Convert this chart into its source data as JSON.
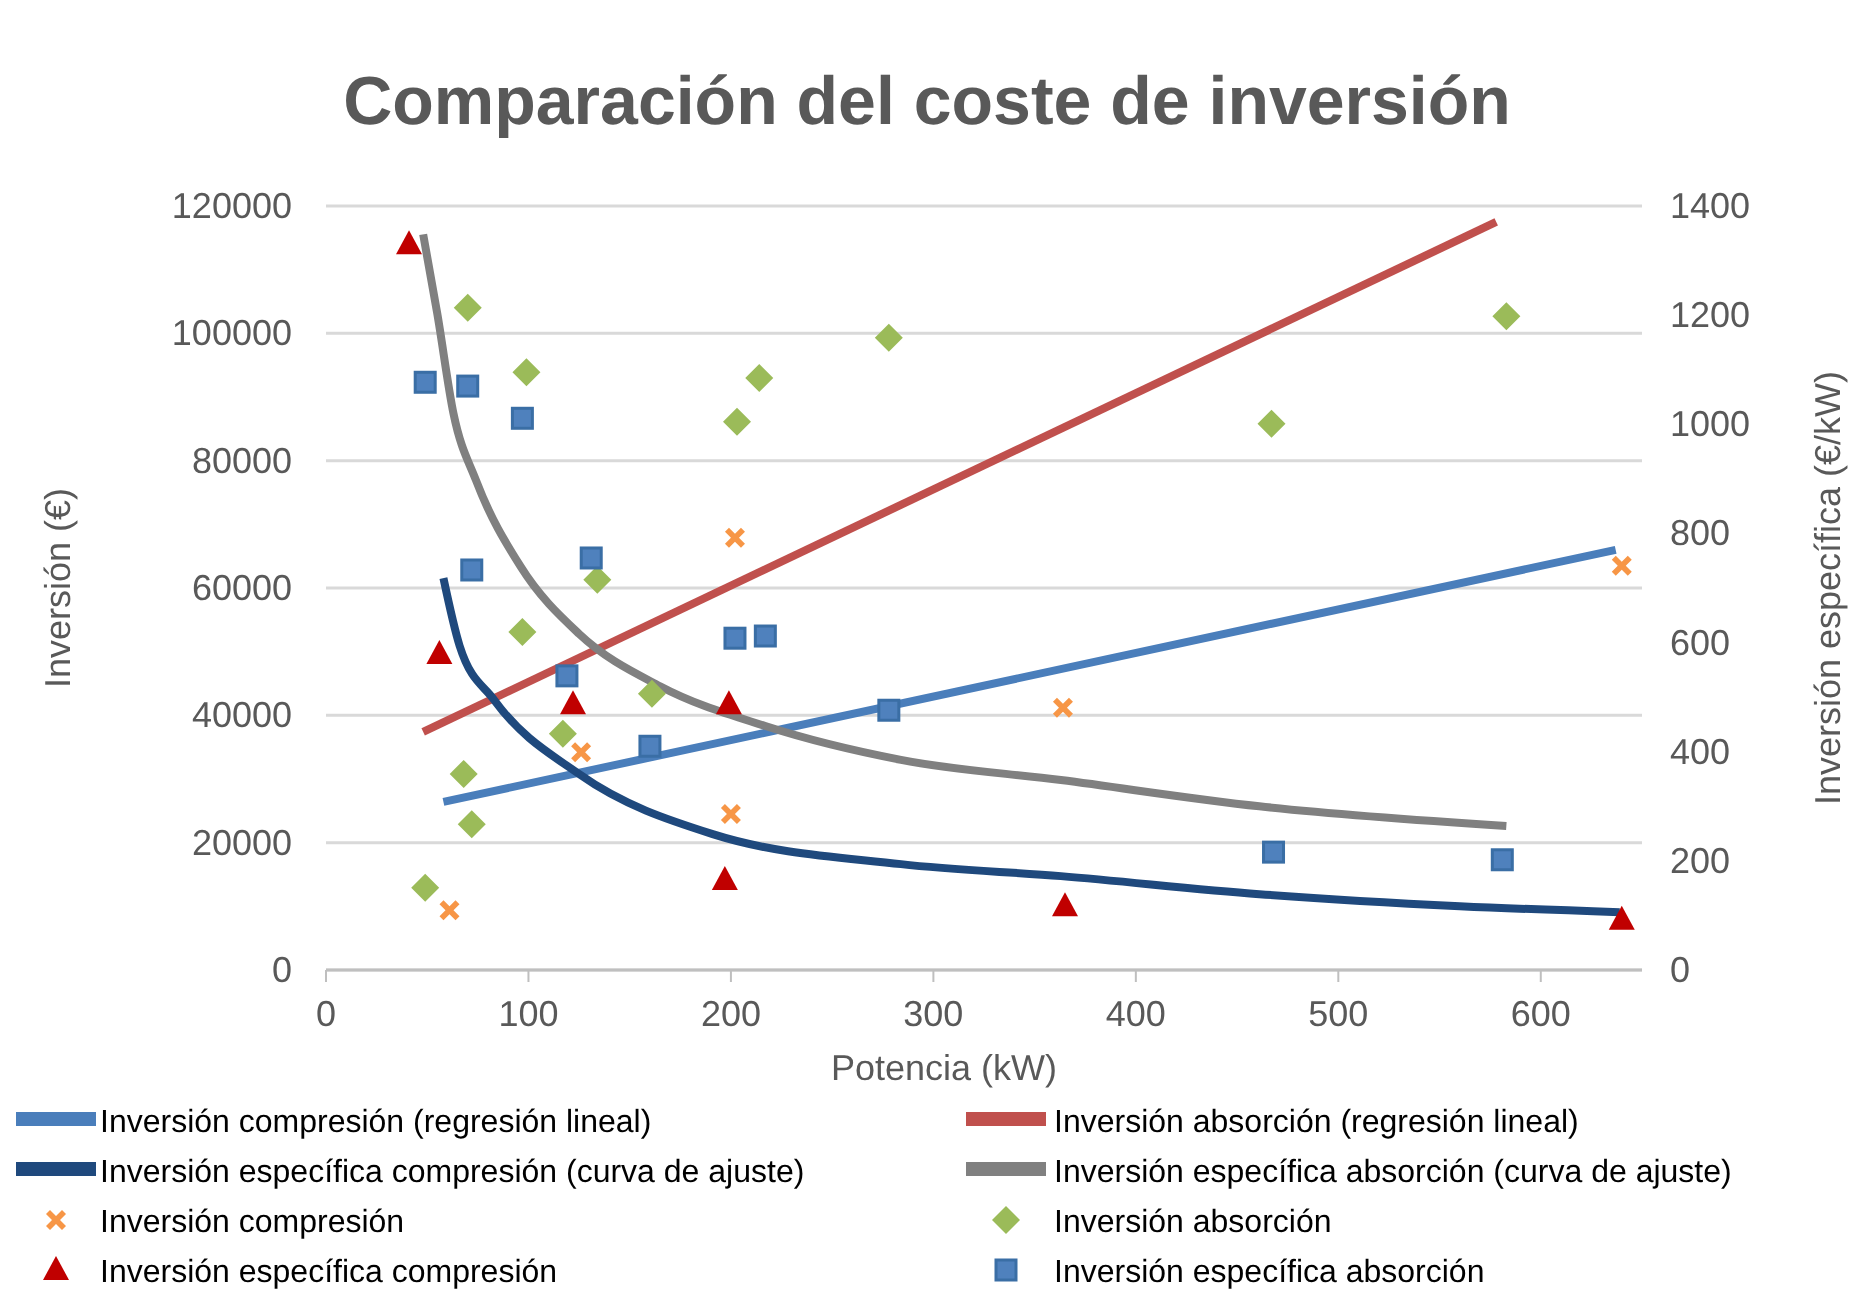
{
  "chart_data": {
    "type": "scatter",
    "title": "Comparación del coste de inversión",
    "xlabel": "Potencia (kW)",
    "ylabel": "Inversión (€)",
    "y2label": "Inversión específica (€/kW)",
    "xlim": [
      0,
      650
    ],
    "xticks": [
      0,
      100,
      200,
      300,
      400,
      500,
      600
    ],
    "ylim": [
      0,
      120000
    ],
    "yticks": [
      0,
      20000,
      40000,
      60000,
      80000,
      100000,
      120000
    ],
    "y2lim": [
      0,
      1400
    ],
    "y2ticks": [
      0,
      200,
      400,
      600,
      800,
      1000,
      1200,
      1400
    ],
    "grid": "y",
    "legend": "bottom",
    "series": [
      {
        "name": "Inversión compresión (regresión lineal)",
        "type": "line",
        "color": "#4a7ebb",
        "x": [
          58,
          637
        ],
        "values": [
          26400,
          66000
        ]
      },
      {
        "name": "Inversión absorción (regresión lineal)",
        "type": "line",
        "color": "#c0504d",
        "x": [
          48,
          578
        ],
        "values": [
          37400,
          117500
        ]
      },
      {
        "name": "Inversión específica compresión (curva de ajuste)",
        "type": "line",
        "axis": "y2",
        "color": "#1f497d",
        "x": [
          58,
          66,
          83,
          125,
          191,
          284,
          363,
          461,
          560,
          639
        ],
        "values": [
          718,
          594,
          495,
          359,
          249,
          194,
          172,
          139,
          117,
          106
        ]
      },
      {
        "name": "Inversión específica absorción (curva de ajuste)",
        "type": "line",
        "axis": "y2",
        "color": "#808080",
        "x": [
          48,
          55,
          63,
          74,
          96,
          125,
          165,
          217,
          284,
          363,
          461,
          583
        ],
        "values": [
          1348,
          1202,
          1019,
          898,
          740,
          616,
          520,
          447,
          385,
          348,
          300,
          264
        ]
      },
      {
        "name": "Inversión compresión",
        "type": "scatter",
        "marker": "cross",
        "color": "#f79646",
        "x": [
          61,
          126,
          200,
          202,
          364,
          640
        ],
        "values": [
          9400,
          34200,
          24500,
          67900,
          41200,
          63500
        ]
      },
      {
        "name": "Inversión absorción",
        "type": "scatter",
        "marker": "diamond",
        "color": "#9bbb59",
        "x": [
          49,
          68,
          70,
          72,
          97,
          99,
          117,
          134,
          161,
          203,
          214,
          278,
          467,
          583
        ],
        "values": [
          12900,
          30800,
          104000,
          22900,
          53100,
          93900,
          37100,
          61300,
          43400,
          86100,
          93000,
          99300,
          85800,
          102700
        ]
      },
      {
        "name": "Inversión específica compresión",
        "type": "scatter",
        "marker": "triangle",
        "axis": "y2",
        "color": "#c00000",
        "x": [
          41,
          56,
          122,
          197,
          199,
          365,
          640
        ],
        "values": [
          1330,
          579,
          487,
          165,
          487,
          117,
          92
        ]
      },
      {
        "name": "Inversión específica absorción",
        "type": "scatter",
        "marker": "square",
        "axis": "y2",
        "color": "#4f81bd",
        "x": [
          49,
          70,
          72,
          97,
          119,
          131,
          160,
          202,
          217,
          278,
          468,
          581
        ],
        "values": [
          1077,
          1070,
          733,
          1011,
          539,
          755,
          410,
          608,
          612,
          476,
          216,
          202
        ]
      }
    ]
  }
}
